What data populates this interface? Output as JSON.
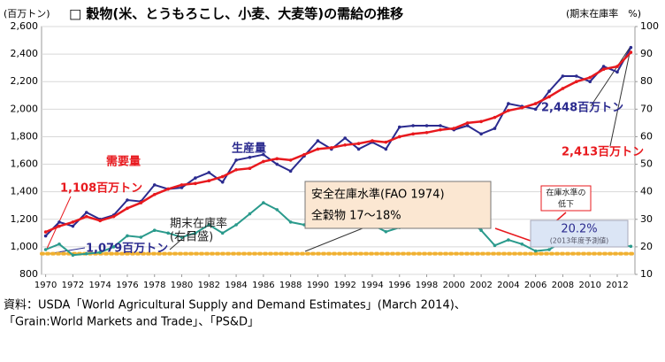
{
  "chart_data": {
    "type": "line",
    "title": "□ 穀物(米、とうもろこし、小麦、大麦等)の需給の推移",
    "y_label": "(百万トン)",
    "y2_label": "(期末在庫率　%)",
    "x": [
      1970,
      1971,
      1972,
      1973,
      1974,
      1975,
      1976,
      1977,
      1978,
      1979,
      1980,
      1981,
      1982,
      1983,
      1984,
      1985,
      1986,
      1987,
      1988,
      1989,
      1990,
      1991,
      1992,
      1993,
      1994,
      1995,
      1996,
      1997,
      1998,
      1999,
      2000,
      2001,
      2002,
      2003,
      2004,
      2005,
      2006,
      2007,
      2008,
      2009,
      2010,
      2011,
      2012,
      2013
    ],
    "xlim": [
      1969.7,
      2013.3
    ],
    "xticks": [
      1970,
      1972,
      1974,
      1976,
      1978,
      1980,
      1982,
      1984,
      1986,
      1988,
      1990,
      1992,
      1994,
      1996,
      1998,
      2000,
      2002,
      2004,
      2006,
      2008,
      2010,
      2012
    ],
    "ylim": [
      800,
      2600
    ],
    "yticks": [
      800,
      {
        "value": 1000,
        "label": "1,000"
      },
      {
        "value": 1200,
        "label": "1,200"
      },
      {
        "value": 1400,
        "label": "1,400"
      },
      {
        "value": 1600,
        "label": "1,600"
      },
      {
        "value": 1800,
        "label": "1,800"
      },
      {
        "value": 2000,
        "label": "2,000"
      },
      {
        "value": 2200,
        "label": "2,200"
      },
      {
        "value": 2400,
        "label": "2,400"
      },
      {
        "value": 2600,
        "label": "2,600"
      }
    ],
    "y2lim": [
      10,
      100
    ],
    "y2ticks": [
      10,
      20,
      30,
      40,
      50,
      60,
      70,
      80,
      90,
      100
    ],
    "grid": true,
    "series": [
      {
        "name": "生産量",
        "color": "#2b2b8f",
        "values": [
          1079,
          1180,
          1150,
          1250,
          1200,
          1230,
          1340,
          1330,
          1450,
          1420,
          1430,
          1500,
          1540,
          1470,
          1630,
          1650,
          1670,
          1600,
          1550,
          1660,
          1770,
          1710,
          1790,
          1710,
          1760,
          1710,
          1870,
          1880,
          1880,
          1880,
          1850,
          1880,
          1820,
          1860,
          2040,
          2020,
          2000,
          2130,
          2240,
          2240,
          2200,
          2310,
          2270,
          2448
        ],
        "value_labels": [
          "1,079百万トン",
          null,
          null,
          null,
          null,
          null,
          null,
          null,
          null,
          null,
          null,
          null,
          null,
          null,
          null,
          null,
          null,
          null,
          null,
          null,
          null,
          null,
          null,
          null,
          null,
          null,
          null,
          null,
          null,
          null,
          null,
          null,
          null,
          null,
          null,
          null,
          null,
          null,
          null,
          null,
          null,
          null,
          null,
          "2,448百万トン"
        ]
      },
      {
        "name": "需要量",
        "color": "#e8191e",
        "values": [
          1108,
          1150,
          1180,
          1220,
          1190,
          1220,
          1280,
          1320,
          1380,
          1420,
          1450,
          1460,
          1480,
          1510,
          1560,
          1570,
          1620,
          1640,
          1630,
          1670,
          1710,
          1720,
          1740,
          1750,
          1770,
          1760,
          1800,
          1820,
          1830,
          1850,
          1860,
          1900,
          1910,
          1940,
          1990,
          2010,
          2040,
          2090,
          2150,
          2200,
          2230,
          2290,
          2310,
          2413
        ],
        "value_labels": [
          "1,108百万トン",
          null,
          null,
          null,
          null,
          null,
          null,
          null,
          null,
          null,
          null,
          null,
          null,
          null,
          null,
          null,
          null,
          null,
          null,
          null,
          null,
          null,
          null,
          null,
          null,
          null,
          null,
          null,
          null,
          null,
          null,
          null,
          null,
          null,
          null,
          null,
          null,
          null,
          null,
          null,
          null,
          null,
          null,
          "2,413百万トン"
        ]
      },
      {
        "name": "期末在庫率",
        "name_note": "(右目盛)",
        "color": "#2a9a8c",
        "axis": "y2",
        "values": [
          19,
          21,
          17,
          17.5,
          18,
          20,
          24,
          23.5,
          26,
          25,
          23.5,
          25,
          28,
          25,
          28,
          32,
          36,
          33.5,
          29,
          28,
          29,
          28.5,
          30,
          28,
          28,
          25.5,
          27,
          29,
          32,
          32,
          31.5,
          30,
          26,
          20.5,
          22.5,
          21,
          18.5,
          19,
          22,
          23,
          21.5,
          21,
          20.5,
          20.2
        ],
        "value_labels": [
          null,
          null,
          null,
          null,
          null,
          null,
          null,
          null,
          null,
          null,
          null,
          null,
          null,
          null,
          null,
          null,
          null,
          null,
          null,
          null,
          null,
          null,
          null,
          null,
          null,
          null,
          null,
          null,
          null,
          null,
          null,
          null,
          null,
          null,
          null,
          null,
          null,
          null,
          null,
          null,
          null,
          null,
          null,
          "20.2%"
        ]
      }
    ],
    "reference_line": {
      "value": 17.5,
      "axis": "y2",
      "color": "#f0b030",
      "title": "安全在庫水準(FAO 1974)",
      "text": "全穀物 17～18%"
    },
    "annotations": {
      "decline": [
        "在庫水準の",
        "低下"
      ],
      "forecast": "(2013年度予測値)"
    },
    "source": [
      "資料：USDA「World Agricultural Supply and Demand Estimates」(March 2014)、",
      "「Grain:World Markets and Trade」、「PS&D」"
    ]
  }
}
